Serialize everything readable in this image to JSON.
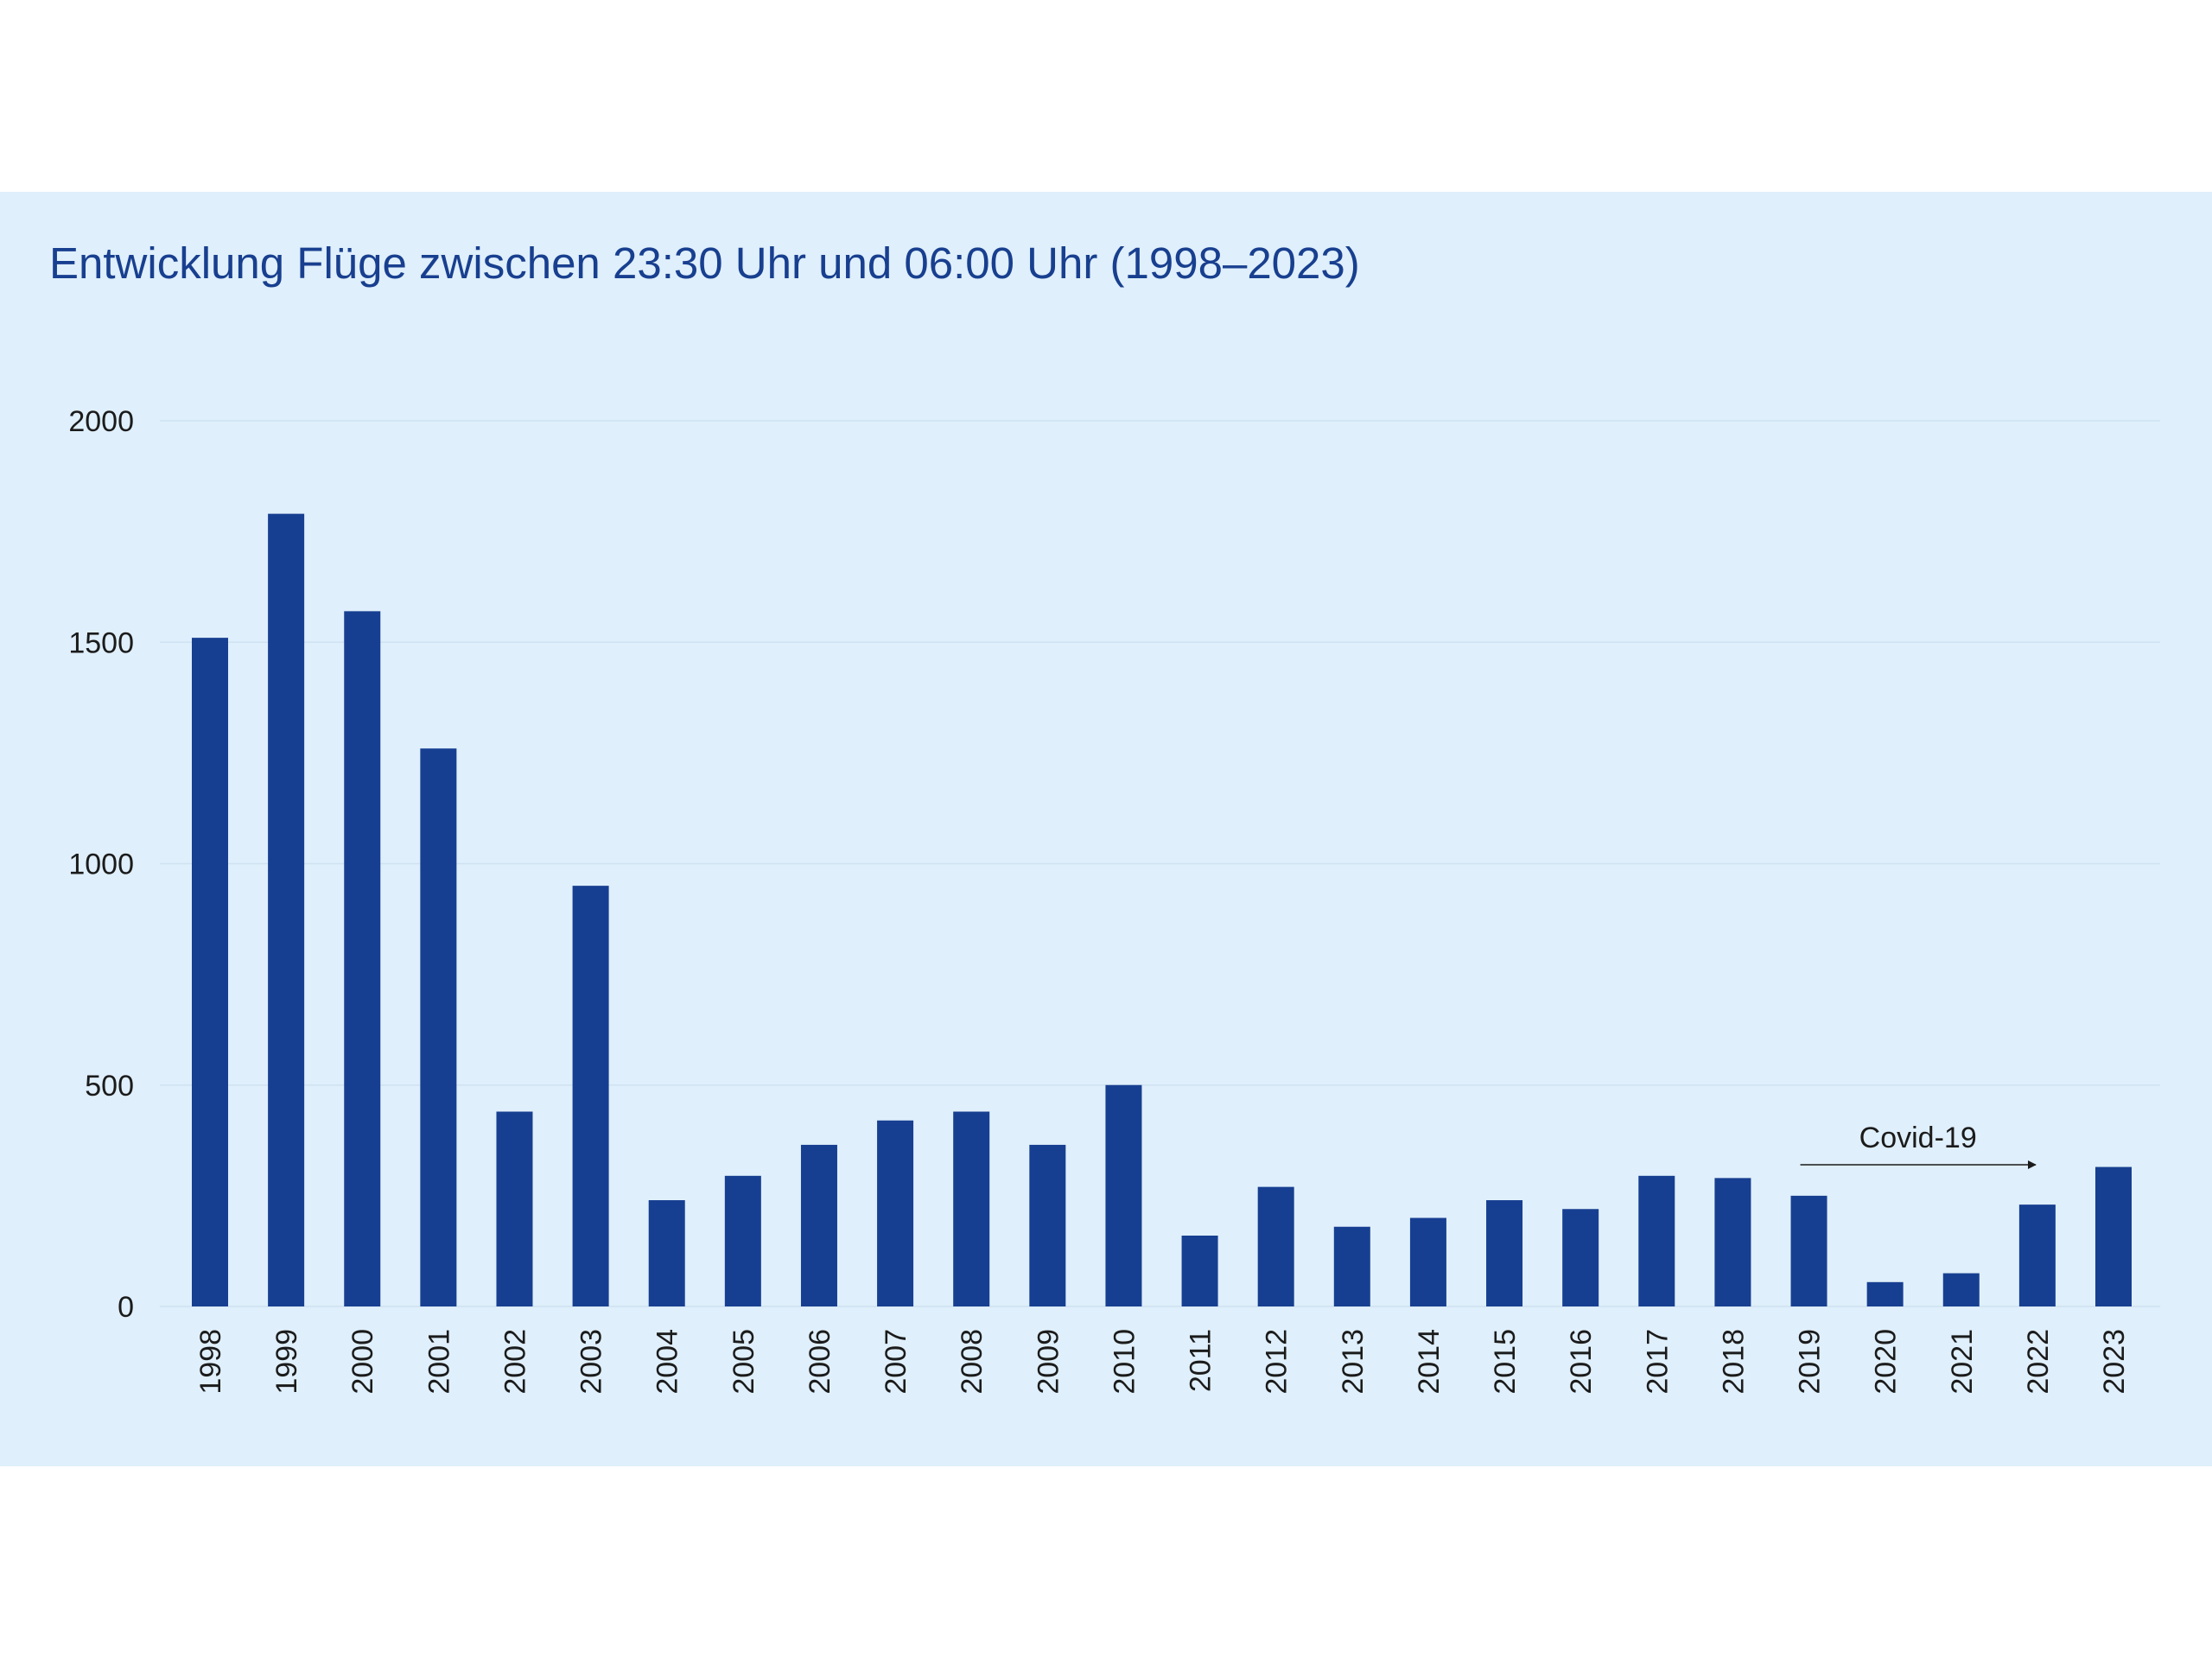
{
  "colors": {
    "panel_background": "#dfeffb",
    "bar": "#173f91",
    "title": "#183f8f",
    "gridline": "#cfe2f2",
    "text": "#1b1b1b"
  },
  "chart_data": {
    "type": "bar",
    "title": "Entwicklung Flüge zwischen 23:30 Uhr und 06:00 Uhr (1998–2023)",
    "xlabel": "",
    "ylabel": "",
    "ylim": [
      0,
      2000
    ],
    "yticks": [
      0,
      500,
      1000,
      1500,
      2000
    ],
    "grid": true,
    "categories": [
      "1998",
      "1999",
      "2000",
      "2001",
      "2002",
      "2003",
      "2004",
      "2005",
      "2006",
      "2007",
      "2008",
      "2009",
      "2010",
      "2011",
      "2012",
      "2013",
      "2014",
      "2015",
      "2016",
      "2017",
      "2018",
      "2019",
      "2020",
      "2021",
      "2022",
      "2023"
    ],
    "values": [
      1510,
      1790,
      1570,
      1260,
      440,
      950,
      240,
      295,
      365,
      420,
      440,
      365,
      500,
      160,
      270,
      180,
      200,
      240,
      220,
      295,
      290,
      250,
      55,
      75,
      230,
      315
    ],
    "annotations": [
      {
        "text": "Covid-19",
        "from_category": "2019",
        "to_category": "2022",
        "y": 320
      }
    ]
  }
}
